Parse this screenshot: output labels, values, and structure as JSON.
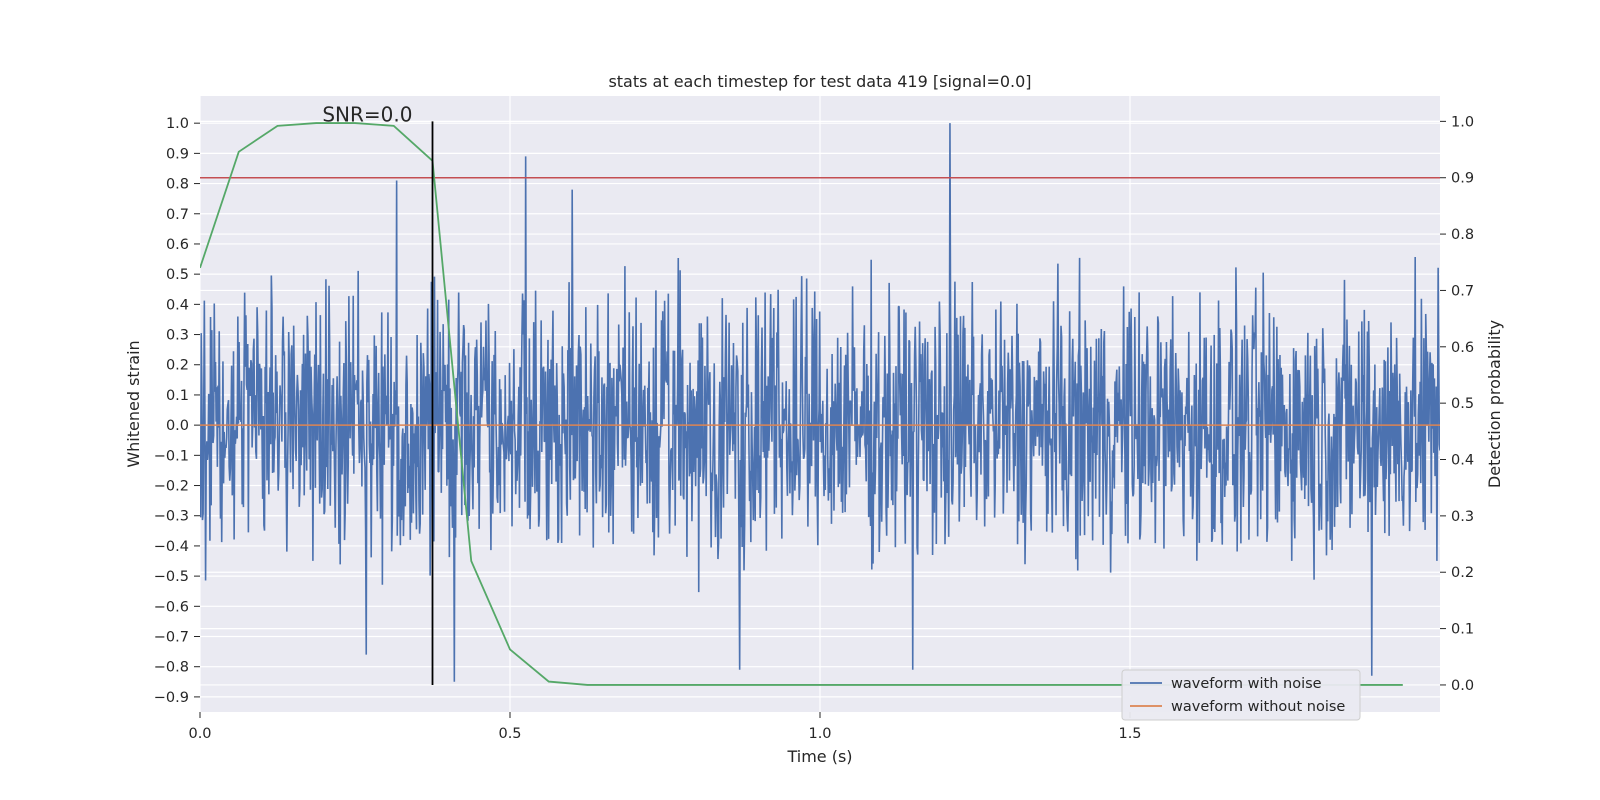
{
  "chart_data": {
    "type": "line",
    "title": "stats at each timestep for test data 419 [signal=0.0]",
    "xlabel": "Time (s)",
    "ylabel": "Whitened strain",
    "y2label": "Detection probability",
    "xlim": [
      0.0,
      2.0
    ],
    "ylim": [
      -0.95,
      1.09
    ],
    "y2lim": [
      -0.048,
      1.045
    ],
    "xticks": [
      "0.0",
      "0.5",
      "1.0",
      "1.5"
    ],
    "yticks": [
      "1.0",
      "0.9",
      "0.8",
      "0.7",
      "0.6",
      "0.5",
      "0.4",
      "0.3",
      "0.2",
      "0.1",
      "0.0",
      "-0.1",
      "-0.2",
      "-0.3",
      "-0.4",
      "-0.5",
      "-0.6",
      "-0.7",
      "-0.8",
      "-0.9"
    ],
    "y2ticks": [
      "1.0",
      "0.9",
      "0.8",
      "0.7",
      "0.6",
      "0.5",
      "0.4",
      "0.3",
      "0.2",
      "0.1",
      "0.0"
    ],
    "annotation": "SNR=0.0",
    "annotation_x": 0.27,
    "marker_x": 0.375,
    "threshold_prob": 0.9,
    "grid": true,
    "legend_position": "lower right",
    "series": [
      {
        "name": "waveform with noise",
        "color": "#4c72b0",
        "axis": "left",
        "note": "dense noise waveform, approximately 2000 samples",
        "peaks": [
          {
            "x": 0.317,
            "y": 0.81
          },
          {
            "x": 0.525,
            "y": 0.89
          },
          {
            "x": 0.6,
            "y": 0.78
          },
          {
            "x": 1.21,
            "y": 1.0
          },
          {
            "x": 0.87,
            "y": -0.81
          },
          {
            "x": 1.15,
            "y": -0.81
          },
          {
            "x": 1.89,
            "y": -0.83
          },
          {
            "x": 0.41,
            "y": -0.85
          },
          {
            "x": 0.268,
            "y": -0.76
          }
        ]
      },
      {
        "name": "waveform without noise",
        "color": "#dd8452",
        "axis": "left",
        "x": [
          0.0,
          2.0
        ],
        "y": [
          0.0,
          0.0
        ]
      },
      {
        "color": "#55a868",
        "axis": "right",
        "x": [
          0.0,
          0.0625,
          0.125,
          0.1875,
          0.25,
          0.3125,
          0.375,
          0.4375,
          0.5,
          0.5625,
          0.625,
          0.6875,
          1.0,
          1.5,
          1.94
        ],
        "y": [
          0.74,
          0.946,
          0.992,
          0.997,
          0.997,
          0.992,
          0.93,
          0.22,
          0.063,
          0.006,
          0.0,
          0.0,
          0.0,
          0.0,
          0.0
        ]
      }
    ],
    "colors": {
      "plot_bg": "#eaeaf2",
      "grid": "#ffffff",
      "threshold_line": "#c44e52",
      "marker_line": "#000000"
    }
  }
}
